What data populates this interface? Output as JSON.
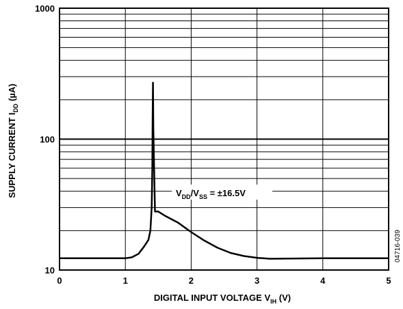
{
  "chart_data": {
    "type": "line",
    "y_scale": "log",
    "xlim": [
      0,
      5
    ],
    "ylim": [
      10,
      1000
    ],
    "grid": true,
    "x_ticks": [
      "0",
      "1",
      "2",
      "3",
      "4",
      "5"
    ],
    "y_ticks": [
      "10",
      "100",
      "1000"
    ],
    "xlabel": {
      "main": "DIGITAL INPUT VOLTAGE V",
      "sub": "IH",
      "tail": " (V)"
    },
    "ylabel": {
      "main": "SUPPLY CURRENT I",
      "sub": "DD",
      "tail": " (µA)"
    },
    "annotation": {
      "v1": "V",
      "s1": "DD",
      "mid": "/V",
      "s2": "SS",
      "tail": " = ±16.5V"
    },
    "figure_id": "04716-039",
    "series": [
      {
        "x": [
          0,
          0.5,
          1.0,
          1.1,
          1.2,
          1.28,
          1.35,
          1.38,
          1.4,
          1.41,
          1.415,
          1.42,
          1.425,
          1.45,
          1.5,
          1.6,
          1.8,
          2.0,
          2.2,
          2.4,
          2.6,
          2.8,
          3.0,
          3.2,
          4.0,
          5.0
        ],
        "y": [
          12.3,
          12.3,
          12.3,
          12.5,
          13.3,
          15,
          17,
          20,
          30,
          60,
          150,
          270,
          120,
          28,
          28,
          26,
          23,
          19.5,
          16.8,
          14.8,
          13.5,
          12.8,
          12.4,
          12.2,
          12.3,
          12.3
        ]
      }
    ]
  }
}
